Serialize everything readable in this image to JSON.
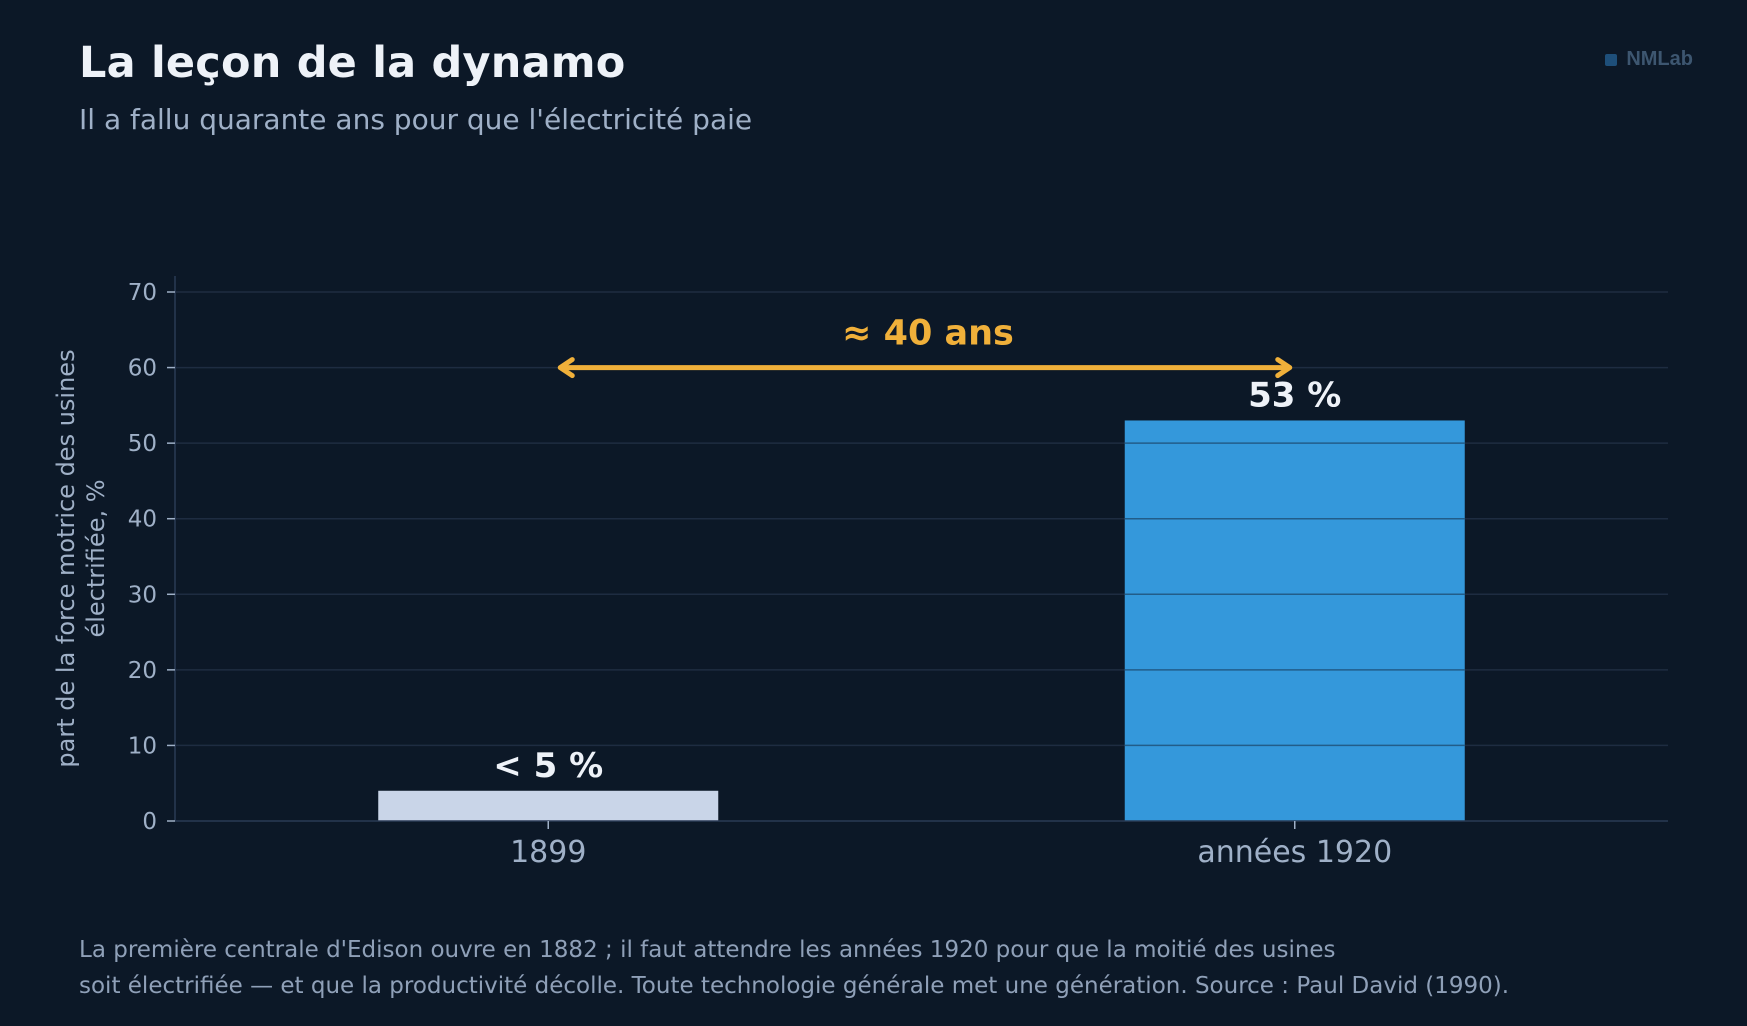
{
  "header": {
    "title": "La leçon de la dynamo",
    "subtitle": "Il a fallu quarante ans pour que l'électricité paie"
  },
  "brand": {
    "name": "NMLab",
    "icon": "square-logo-icon"
  },
  "chart_data": {
    "type": "bar",
    "categories": [
      "1899",
      "années 1920"
    ],
    "values": [
      4,
      53
    ],
    "data_labels": [
      "< 5 %",
      "53 %"
    ],
    "bar_colors": [
      "#c9d5e8",
      "#3498db"
    ],
    "ylabel": "part de la force motrice des usines électrifiée, %",
    "ylabel_lines": [
      "part de la force motrice des usines",
      "électrifiée, %"
    ],
    "ylim": [
      0,
      70
    ],
    "yticks": [
      0,
      10,
      20,
      30,
      40,
      50,
      60,
      70
    ],
    "grid": true,
    "annotation": {
      "text": "≈ 40 ans",
      "y": 60,
      "from_category": "1899",
      "to_category": "années 1920",
      "color": "#f0b03a"
    }
  },
  "footnote": {
    "line1": "La première centrale d'Edison ouvre en 1882 ; il faut attendre les années 1920 pour que la moitié des usines",
    "line2": "soit électrifiée — et que la productivité décolle. Toute technologie générale met une génération. Source : Paul David (1990)."
  },
  "colors": {
    "background": "#0c1827",
    "grid": "#1e2c41",
    "axis": "#2a3a55",
    "text": "#eef2f8",
    "muted": "#9fb0c7",
    "accent": "#f0b03a"
  }
}
